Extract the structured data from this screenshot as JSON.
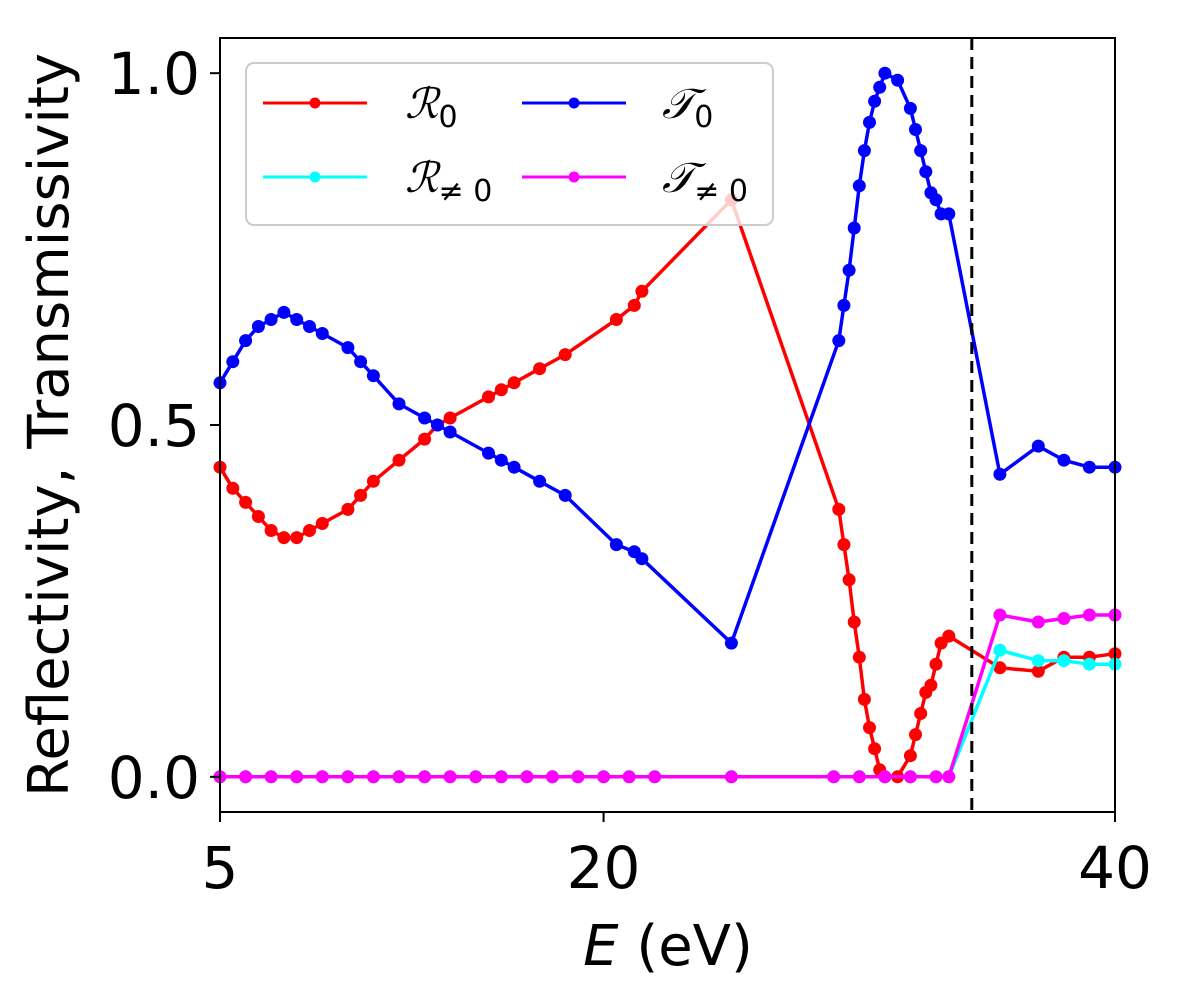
{
  "chart_data": {
    "type": "line",
    "xlabel": {
      "var": "E",
      "unit": " (eV)"
    },
    "ylabel": "Reflectivity, Transmissivity",
    "xlim": [
      5,
      40
    ],
    "ylim": [
      -0.05,
      1.05
    ],
    "xticks": [
      5,
      20,
      40
    ],
    "xtick_labels": [
      "5",
      "20",
      "40"
    ],
    "yticks": [
      0.0,
      0.5,
      1.0
    ],
    "ytick_labels": [
      "0.0",
      "0.5",
      "1.0"
    ],
    "vline_x": 34.4,
    "legend_position": "top-left",
    "series": [
      {
        "name": "R0",
        "label_main": "ℛ",
        "label_sub": "0",
        "color": "#ff0000",
        "x": [
          5.0,
          5.5,
          6.0,
          6.5,
          7.0,
          7.5,
          8.0,
          8.5,
          9.0,
          10.0,
          10.5,
          11.0,
          12.0,
          13.0,
          13.5,
          14.0,
          15.5,
          16.0,
          16.5,
          17.5,
          18.5,
          20.5,
          21.2,
          21.5,
          25.0,
          29.2,
          29.4,
          29.6,
          29.8,
          30.0,
          30.2,
          30.4,
          30.6,
          30.8,
          31.0,
          31.5,
          32.0,
          32.2,
          32.4,
          32.6,
          32.8,
          33.0,
          33.2,
          33.5,
          35.5,
          37.0,
          38.0,
          39.0,
          40.0
        ],
        "y": [
          0.44,
          0.41,
          0.39,
          0.37,
          0.35,
          0.34,
          0.34,
          0.35,
          0.36,
          0.38,
          0.4,
          0.42,
          0.45,
          0.48,
          0.5,
          0.51,
          0.54,
          0.55,
          0.56,
          0.58,
          0.6,
          0.65,
          0.67,
          0.69,
          0.82,
          0.38,
          0.33,
          0.28,
          0.22,
          0.17,
          0.11,
          0.07,
          0.04,
          0.01,
          0.0,
          0.0,
          0.03,
          0.06,
          0.09,
          0.12,
          0.13,
          0.16,
          0.19,
          0.2,
          0.155,
          0.15,
          0.17,
          0.17,
          0.175
        ]
      },
      {
        "name": "Rneq0",
        "label_main": "ℛ",
        "label_sub": "≠ 0",
        "color": "#00ffff",
        "x": [
          5.0,
          6.0,
          7.0,
          8.0,
          9.0,
          10.0,
          11.0,
          12.0,
          13.0,
          14.0,
          15.0,
          16.0,
          17.0,
          18.0,
          19.0,
          20.0,
          21.0,
          22.0,
          25.0,
          29.0,
          30.0,
          31.0,
          32.0,
          33.0,
          33.5,
          35.5,
          37.0,
          38.0,
          39.0,
          40.0
        ],
        "y": [
          0,
          0,
          0,
          0,
          0,
          0,
          0,
          0,
          0,
          0,
          0,
          0,
          0,
          0,
          0,
          0,
          0,
          0,
          0,
          0,
          0,
          0,
          0,
          0,
          0,
          0.18,
          0.165,
          0.165,
          0.16,
          0.16
        ]
      },
      {
        "name": "T0",
        "label_main": "𝒯",
        "label_sub": "0",
        "color": "#0000ff",
        "x": [
          5.0,
          5.5,
          6.0,
          6.5,
          7.0,
          7.5,
          8.0,
          8.5,
          9.0,
          10.0,
          10.5,
          11.0,
          12.0,
          13.0,
          13.5,
          14.0,
          15.5,
          16.0,
          16.5,
          17.5,
          18.5,
          20.5,
          21.2,
          21.5,
          25.0,
          29.2,
          29.4,
          29.6,
          29.8,
          30.0,
          30.2,
          30.4,
          30.6,
          30.8,
          31.0,
          31.5,
          32.0,
          32.2,
          32.4,
          32.6,
          32.8,
          33.0,
          33.2,
          33.5,
          35.5,
          37.0,
          38.0,
          39.0,
          40.0
        ],
        "y": [
          0.56,
          0.59,
          0.62,
          0.64,
          0.65,
          0.66,
          0.65,
          0.64,
          0.63,
          0.61,
          0.59,
          0.57,
          0.53,
          0.51,
          0.5,
          0.49,
          0.46,
          0.45,
          0.44,
          0.42,
          0.4,
          0.33,
          0.32,
          0.31,
          0.19,
          0.62,
          0.67,
          0.72,
          0.78,
          0.84,
          0.89,
          0.93,
          0.96,
          0.98,
          1.0,
          0.99,
          0.95,
          0.92,
          0.89,
          0.86,
          0.83,
          0.82,
          0.8,
          0.8,
          0.43,
          0.47,
          0.45,
          0.44,
          0.44
        ]
      },
      {
        "name": "Tneq0",
        "label_main": "𝒯",
        "label_sub": "≠ 0",
        "color": "#ff00ff",
        "x": [
          5.0,
          6.0,
          7.0,
          8.0,
          9.0,
          10.0,
          11.0,
          12.0,
          13.0,
          14.0,
          15.0,
          16.0,
          17.0,
          18.0,
          19.0,
          20.0,
          21.0,
          22.0,
          25.0,
          29.0,
          30.0,
          31.0,
          32.0,
          33.0,
          33.5,
          35.5,
          37.0,
          38.0,
          39.0,
          40.0
        ],
        "y": [
          0,
          0,
          0,
          0,
          0,
          0,
          0,
          0,
          0,
          0,
          0,
          0,
          0,
          0,
          0,
          0,
          0,
          0,
          0,
          0,
          0,
          0,
          0,
          0,
          0,
          0.23,
          0.22,
          0.225,
          0.23,
          0.23
        ]
      }
    ]
  }
}
